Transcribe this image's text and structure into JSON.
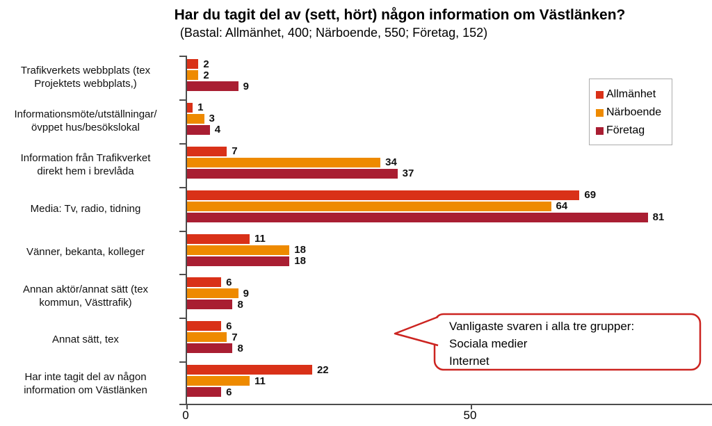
{
  "chart_data": {
    "type": "bar",
    "orientation": "horizontal",
    "title": "Har du tagit del av (sett, hört) någon information om Västlänken?",
    "subtitle": "(Bastal: Allmänhet, 400; Närboende, 550; Företag, 152)",
    "categories": [
      "Trafikverkets webbplats (tex\nProjektets webbplats,)",
      "Informationsmöte/utställningar/\növppet hus/besökslokal",
      "Information från Trafikverket\ndirekt hem i brevlåda",
      "Media: Tv, radio, tidning",
      "Vänner, bekanta, kolleger",
      "Annan aktör/annat sätt (tex\nkommun, Västtrafik)",
      "Annat sätt, tex",
      "Har inte tagit del av någon\ninformation om Västlänken"
    ],
    "series": [
      {
        "name": "Allmänhet",
        "color": "#d93118",
        "values": [
          2,
          1,
          7,
          69,
          11,
          6,
          6,
          22
        ]
      },
      {
        "name": "Närboende",
        "color": "#ee8a00",
        "values": [
          2,
          3,
          34,
          64,
          18,
          9,
          7,
          11
        ]
      },
      {
        "name": "Företag",
        "color": "#a91e32",
        "values": [
          9,
          4,
          37,
          81,
          18,
          8,
          8,
          6
        ]
      }
    ],
    "xlabel": "",
    "ylabel": "",
    "xlim": [
      0,
      92
    ],
    "x_ticks": [
      {
        "value": 0,
        "label": "0"
      },
      {
        "value": 50,
        "label": "50"
      }
    ],
    "grid": false,
    "legend_position": "upper-right",
    "annotation": {
      "text": "Vanligaste svaren i alla tre grupper:\nSociala medier\nInternet",
      "border_color": "#cc2420",
      "shape": "rounded-speech-bubble-left-tail"
    }
  }
}
